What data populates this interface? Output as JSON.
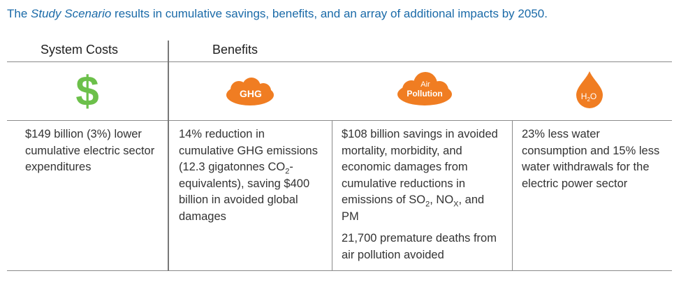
{
  "title": {
    "prefix": "The ",
    "emphasis": "Study Scenario",
    "suffix": " results in cumulative savings, benefits, and an array of additional impacts by 2050."
  },
  "headers": {
    "system_costs": "System Costs",
    "benefits": "Benefits"
  },
  "icons": {
    "dollar": "$",
    "ghg": "GHG",
    "air_line1": "Air",
    "air_line2": "Pollution",
    "water": "H",
    "water_sub": "2",
    "water_tail": "O"
  },
  "colors": {
    "title": "#1a6aa8",
    "dollar": "#6cc04a",
    "orange": "#f07d22"
  },
  "cells": {
    "costs": "$149 billion (3%) lower cumulative electric sector expenditures",
    "ghg": {
      "part1": "14% reduction in cumulative GHG emissions (12.3 gigatonnes CO",
      "sub": "2",
      "part2": "-equivalents), saving $400 billion in avoided global damages"
    },
    "air": {
      "part1": "$108 billion savings in avoided mortality, morbidity, and economic damages from cumulative reductions in emissions of SO",
      "sub1": "2",
      "part2": ", NO",
      "sub2": "X",
      "part3": ", and PM",
      "deaths": "21,700 premature deaths from air pollution avoided"
    },
    "water": "23% less water consumption and 15% less water withdrawals for the electric power sector"
  }
}
